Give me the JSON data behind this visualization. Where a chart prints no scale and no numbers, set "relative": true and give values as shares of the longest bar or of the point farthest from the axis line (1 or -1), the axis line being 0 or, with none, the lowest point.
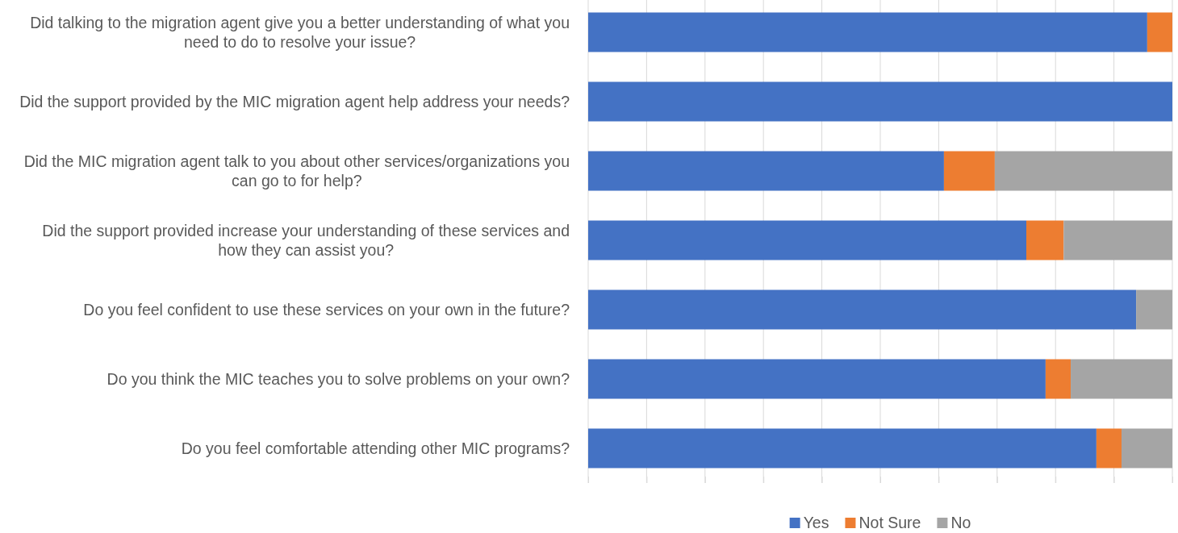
{
  "chart_data": {
    "type": "bar",
    "orientation": "horizontal",
    "stacked": true,
    "relative": true,
    "grid": "x",
    "legend": "bottom",
    "categories": [
      "Did talking to the migration agent give you a better understanding of what you need to do to resolve your issue?",
      "Did the support provided by the MIC migration agent help address your needs?",
      "Did the MIC migration agent talk to you about other services/organizations you can go to for help?",
      "Did the support provided increase your understanding of these services and how they can assist you?",
      "Do you feel confident to use these services on your own in the future?",
      "Do you think the MIC teaches you to solve problems on your own?",
      "Do you feel comfortable attending other MIC programs?"
    ],
    "series": [
      {
        "name": "Yes",
        "color": "#4472c4",
        "values": [
          0.957,
          1.0,
          0.609,
          0.75,
          0.938,
          0.783,
          0.87
        ]
      },
      {
        "name": "Not Sure",
        "color": "#ed7d31",
        "values": [
          0.043,
          0,
          0.087,
          0.064,
          0,
          0.043,
          0.043
        ]
      },
      {
        "name": "No",
        "color": "#a5a5a5",
        "values": [
          0,
          0,
          0.304,
          0.186,
          0.062,
          0.174,
          0.087
        ]
      }
    ]
  }
}
